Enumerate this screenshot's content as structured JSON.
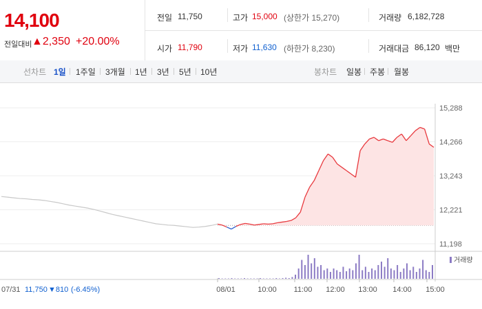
{
  "quote": {
    "price": "14,100",
    "change_label": "전일대비",
    "change_amount": "▲2,350",
    "change_percent": "+20.00%",
    "prev_close_label": "전일",
    "prev_close": "11,750",
    "open_label": "시가",
    "open": "11,790",
    "high_label": "고가",
    "high": "15,000",
    "upper_limit": "(상한가 15,270)",
    "low_label": "저가",
    "low": "11,630",
    "lower_limit": "(하한가 8,230)",
    "volume_label": "거래량",
    "volume": "6,182,728",
    "turnover_label": "거래대금",
    "turnover": "86,120",
    "turnover_unit": "백만"
  },
  "tabs": {
    "line_title": "선차트",
    "line_items": [
      "1일",
      "1주일",
      "3개월",
      "1년",
      "3년",
      "5년",
      "10년"
    ],
    "line_selected": "1일",
    "candle_title": "봉차트",
    "candle_items": [
      "일봉",
      "주봉",
      "월봉"
    ]
  },
  "chart_data": {
    "type": "line",
    "y_ticks": [
      "15,288",
      "14,266",
      "13,243",
      "12,221",
      "11,198"
    ],
    "ylim": [
      11198,
      15288
    ],
    "x_tick_labels": [
      "07/31",
      "08/01",
      "10:00",
      "11:00",
      "12:00",
      "13:00",
      "14:00",
      "15:00"
    ],
    "prev_day_summary": {
      "date": "07/31",
      "close": "11,750",
      "change": "▼810",
      "percent": "(-6.45%)"
    },
    "volume_legend": "거래량",
    "reference_price": 11750,
    "series": [
      {
        "values": [
          12620,
          12600,
          12580,
          12560,
          12550,
          12530,
          12520,
          12500,
          12470,
          12440,
          12400,
          12360,
          12330,
          12300,
          12270,
          12230,
          12180,
          12130,
          12080,
          12040,
          12000,
          11960,
          11920,
          11880,
          11840,
          11800,
          11780,
          11760,
          11750,
          11730,
          11710,
          11690,
          11700,
          11720,
          11750,
          11790
        ]
      },
      {
        "values": [
          11790,
          11760,
          11700,
          11640,
          11720,
          11780,
          11810,
          11790,
          11760,
          11780,
          11800,
          11790,
          11800,
          11830,
          11850,
          11870,
          11900,
          11980,
          12150,
          12600,
          12900,
          13100,
          13400,
          13700,
          13900,
          13800,
          13600,
          13500,
          13400,
          13300,
          13200,
          14000,
          14200,
          14350,
          14400,
          14300,
          14350,
          14300,
          14250,
          14400,
          14500,
          14300,
          14450,
          14600,
          14700,
          14650,
          14200,
          14100
        ]
      }
    ],
    "volume": [
      2,
      1,
      1,
      1,
      2,
      1,
      1,
      1,
      2,
      1,
      1,
      1,
      1,
      2,
      1,
      1,
      1,
      1,
      2,
      1,
      2,
      3,
      2,
      5,
      12,
      30,
      55,
      40,
      70,
      45,
      60,
      35,
      40,
      25,
      30,
      20,
      30,
      25,
      20,
      35,
      22,
      30,
      25,
      45,
      70,
      25,
      35,
      20,
      30,
      25,
      40,
      50,
      35,
      60,
      30,
      25,
      40,
      20,
      30,
      45,
      25,
      35,
      20,
      30,
      55,
      25,
      20,
      40
    ]
  }
}
